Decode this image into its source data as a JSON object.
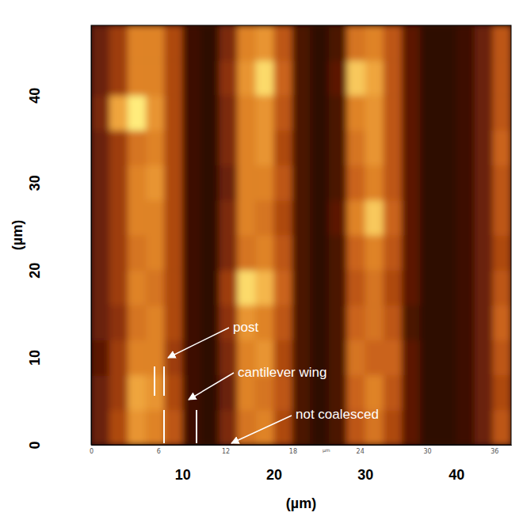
{
  "chart_data": {
    "type": "heatmap",
    "xlim": [
      0,
      46
    ],
    "ylim": [
      0,
      48
    ],
    "xticks": [
      10,
      20,
      30,
      40
    ],
    "yticks": [
      0,
      10,
      20,
      30,
      40
    ],
    "x_label": "(µm)",
    "y_label": "(µm)",
    "x2lim": [
      0,
      37.5
    ],
    "x2ticks": [
      0,
      6,
      12,
      18,
      24,
      30,
      36
    ],
    "x2_label": "µm",
    "x_bins": [
      0,
      2,
      4,
      6,
      8,
      10,
      12,
      14,
      16,
      18,
      20,
      22,
      24,
      26,
      28,
      30,
      32,
      34,
      36,
      38,
      40,
      42,
      44,
      46
    ],
    "y_bins": [
      0,
      4,
      8,
      12,
      16,
      20,
      24,
      28,
      32,
      36,
      40,
      44,
      48
    ],
    "color_range": [
      0,
      1
    ],
    "cells": [
      [
        0.3,
        0.5,
        0.75,
        0.7,
        0.55,
        0.15,
        0.1,
        0.35,
        0.65,
        0.7,
        0.5,
        0.2,
        0.1,
        0.2,
        0.55,
        0.65,
        0.5,
        0.25,
        0.1,
        0.1,
        0.15,
        0.3,
        0.55
      ],
      [
        0.3,
        0.45,
        0.8,
        0.75,
        0.5,
        0.15,
        0.1,
        0.3,
        0.7,
        0.65,
        0.55,
        0.2,
        0.1,
        0.2,
        0.6,
        0.7,
        0.55,
        0.25,
        0.1,
        0.1,
        0.15,
        0.3,
        0.5
      ],
      [
        0.25,
        0.45,
        0.7,
        0.7,
        0.45,
        0.15,
        0.1,
        0.35,
        0.7,
        0.75,
        0.5,
        0.2,
        0.1,
        0.2,
        0.65,
        0.6,
        0.6,
        0.25,
        0.1,
        0.1,
        0.15,
        0.3,
        0.55
      ],
      [
        0.3,
        0.4,
        0.65,
        0.7,
        0.5,
        0.15,
        0.1,
        0.4,
        0.75,
        0.7,
        0.55,
        0.2,
        0.1,
        0.2,
        0.6,
        0.65,
        0.55,
        0.2,
        0.1,
        0.1,
        0.15,
        0.3,
        0.6
      ],
      [
        0.3,
        0.45,
        0.7,
        0.65,
        0.5,
        0.15,
        0.1,
        0.45,
        0.95,
        0.85,
        0.6,
        0.2,
        0.1,
        0.2,
        0.55,
        0.65,
        0.5,
        0.25,
        0.1,
        0.1,
        0.15,
        0.3,
        0.55
      ],
      [
        0.3,
        0.45,
        0.65,
        0.7,
        0.5,
        0.15,
        0.1,
        0.35,
        0.65,
        0.7,
        0.55,
        0.2,
        0.1,
        0.2,
        0.6,
        0.7,
        0.55,
        0.25,
        0.1,
        0.1,
        0.15,
        0.3,
        0.5
      ],
      [
        0.3,
        0.45,
        0.7,
        0.7,
        0.5,
        0.15,
        0.1,
        0.35,
        0.7,
        0.65,
        0.5,
        0.2,
        0.1,
        0.25,
        0.7,
        0.9,
        0.6,
        0.25,
        0.1,
        0.1,
        0.15,
        0.3,
        0.55
      ],
      [
        0.3,
        0.45,
        0.7,
        0.75,
        0.5,
        0.15,
        0.1,
        0.3,
        0.7,
        0.7,
        0.55,
        0.2,
        0.1,
        0.2,
        0.6,
        0.7,
        0.55,
        0.25,
        0.1,
        0.1,
        0.15,
        0.3,
        0.55
      ],
      [
        0.3,
        0.45,
        0.65,
        0.7,
        0.5,
        0.15,
        0.1,
        0.35,
        0.7,
        0.75,
        0.5,
        0.2,
        0.1,
        0.2,
        0.65,
        0.75,
        0.55,
        0.25,
        0.1,
        0.1,
        0.15,
        0.3,
        0.6
      ],
      [
        0.35,
        0.8,
        1.0,
        0.75,
        0.5,
        0.15,
        0.1,
        0.35,
        0.7,
        0.75,
        0.55,
        0.2,
        0.1,
        0.2,
        0.7,
        0.75,
        0.55,
        0.25,
        0.1,
        0.1,
        0.15,
        0.3,
        0.55
      ],
      [
        0.3,
        0.45,
        0.7,
        0.7,
        0.5,
        0.15,
        0.1,
        0.4,
        0.75,
        0.95,
        0.6,
        0.2,
        0.1,
        0.25,
        0.9,
        0.8,
        0.55,
        0.25,
        0.1,
        0.1,
        0.15,
        0.3,
        0.55
      ],
      [
        0.3,
        0.45,
        0.7,
        0.7,
        0.5,
        0.15,
        0.1,
        0.35,
        0.7,
        0.75,
        0.55,
        0.2,
        0.1,
        0.2,
        0.65,
        0.7,
        0.55,
        0.25,
        0.1,
        0.1,
        0.15,
        0.3,
        0.55
      ]
    ],
    "annotations": [
      "post",
      "cantilever wing",
      "not coalesced"
    ]
  }
}
